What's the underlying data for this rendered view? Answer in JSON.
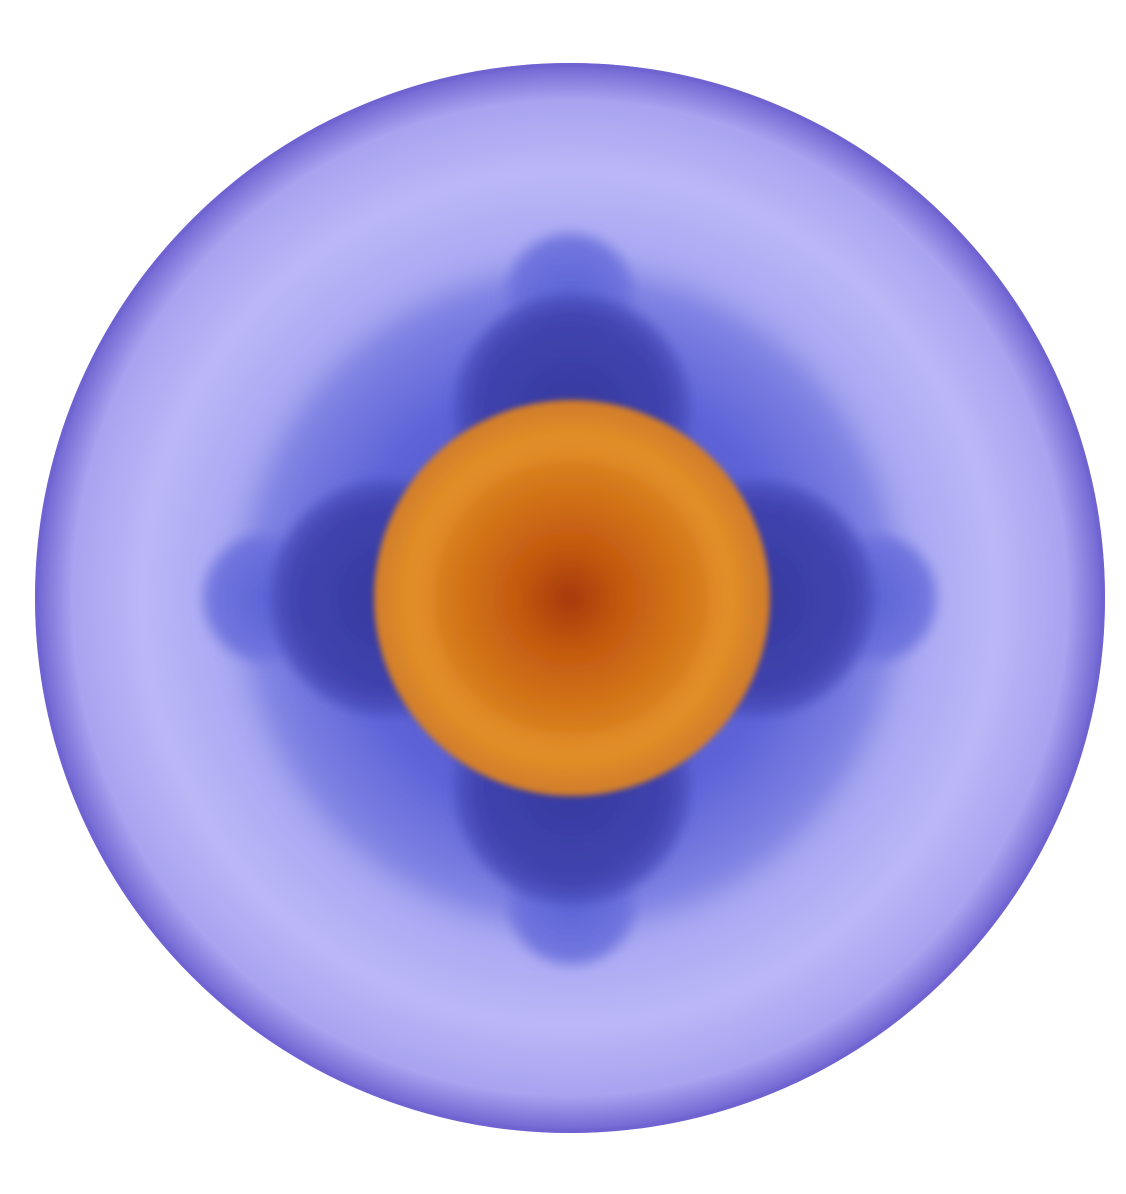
{
  "image": {
    "subject": "radial-orbital-render",
    "colors": {
      "background": "#ffffff",
      "rim": "#6e62d0",
      "halo_light": "#bbb7f7",
      "halo_mid": "#8a86e8",
      "lobe_outer": "#5b63d6",
      "lobe_inner": "#3d3ea6",
      "core_outer": "#e08d28",
      "core_mid": "#d27418",
      "core_center": "#a63a06"
    }
  }
}
